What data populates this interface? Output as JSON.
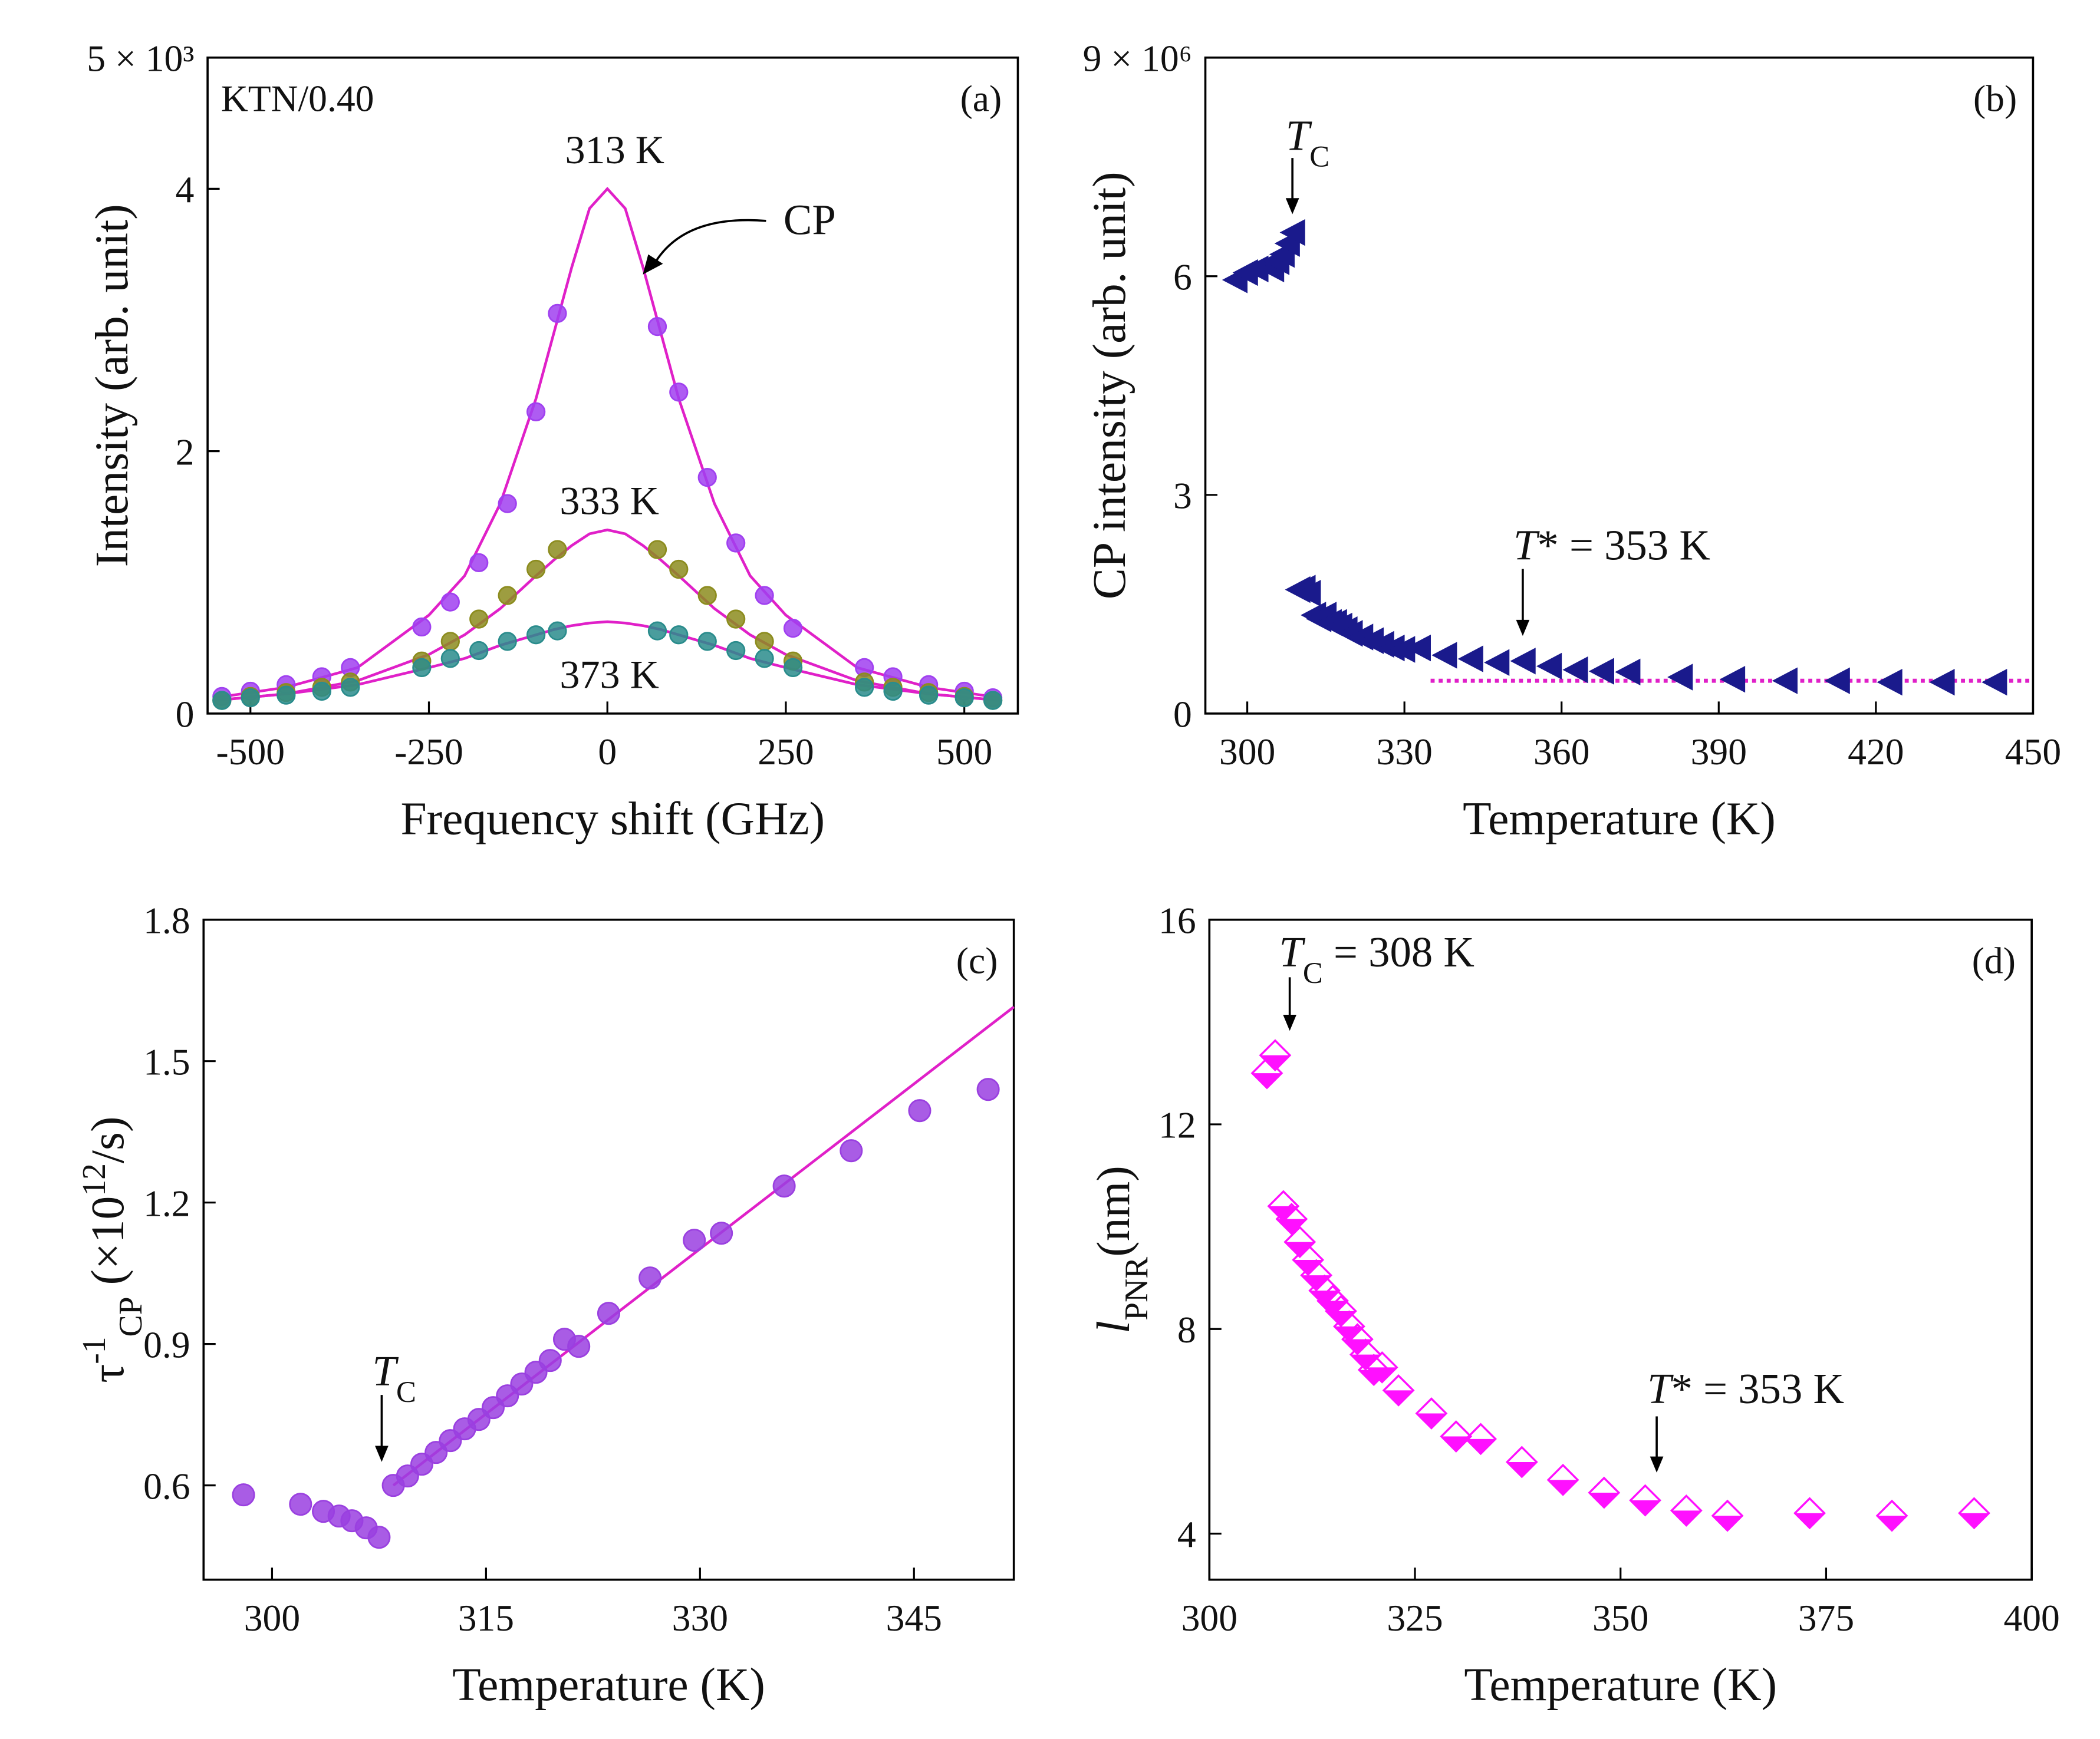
{
  "chart_data": [
    {
      "type": "scatter",
      "panel_label": "(a)",
      "sample": "KTN/0.40",
      "xlabel": "Frequency shift (GHz)",
      "ylabel": "Intensity (arb. unit)",
      "xlim": [
        -560,
        575
      ],
      "ylim": [
        0,
        5
      ],
      "xticks": [
        -500,
        -250,
        0,
        250,
        500
      ],
      "yticks": [
        0,
        2,
        4,
        {
          "value": 5,
          "label": "5 × 10³"
        }
      ],
      "series": [
        {
          "name": "313 K",
          "color": "#a040f0",
          "marker": "circle",
          "x": [
            -540,
            -500,
            -450,
            -400,
            -360,
            -260,
            -220,
            -180,
            -140,
            -100,
            -70,
            70,
            100,
            140,
            180,
            220,
            260,
            360,
            400,
            450,
            500,
            540
          ],
          "values": [
            0.13,
            0.17,
            0.22,
            0.28,
            0.35,
            0.66,
            0.85,
            1.15,
            1.6,
            2.3,
            3.05,
            2.95,
            2.45,
            1.8,
            1.3,
            0.9,
            0.65,
            0.35,
            0.28,
            0.22,
            0.17,
            0.12
          ]
        },
        {
          "name": "333 K",
          "color": "#8c8c1e",
          "marker": "circle",
          "x": [
            -540,
            -500,
            -450,
            -400,
            -360,
            -260,
            -220,
            -180,
            -140,
            -100,
            -70,
            70,
            100,
            140,
            180,
            220,
            260,
            360,
            400,
            450,
            500,
            540
          ],
          "values": [
            0.1,
            0.13,
            0.16,
            0.2,
            0.24,
            0.4,
            0.55,
            0.72,
            0.9,
            1.1,
            1.25,
            1.25,
            1.1,
            0.9,
            0.72,
            0.55,
            0.4,
            0.24,
            0.2,
            0.16,
            0.13,
            0.1
          ]
        },
        {
          "name": "373 K",
          "color": "#2a8c8c",
          "marker": "circle",
          "x": [
            -540,
            -500,
            -450,
            -400,
            -360,
            -260,
            -220,
            -180,
            -140,
            -100,
            -70,
            70,
            100,
            140,
            180,
            220,
            260,
            360,
            400,
            450,
            500,
            540
          ],
          "values": [
            0.1,
            0.12,
            0.14,
            0.17,
            0.2,
            0.35,
            0.42,
            0.48,
            0.55,
            0.6,
            0.63,
            0.63,
            0.6,
            0.55,
            0.48,
            0.42,
            0.35,
            0.2,
            0.17,
            0.14,
            0.12,
            0.1
          ]
        }
      ],
      "fits": [
        {
          "color": "#e020c8",
          "x": [
            -550,
            -450,
            -350,
            -250,
            -200,
            -150,
            -100,
            -75,
            -50,
            -25,
            0,
            25,
            50,
            75,
            100,
            150,
            200,
            250,
            350,
            450,
            550
          ],
          "values": [
            0.12,
            0.2,
            0.35,
            0.75,
            1.05,
            1.6,
            2.4,
            2.9,
            3.4,
            3.85,
            4.0,
            3.85,
            3.4,
            2.9,
            2.4,
            1.6,
            1.05,
            0.75,
            0.35,
            0.2,
            0.12
          ]
        },
        {
          "color": "#e020c8",
          "x": [
            -550,
            -450,
            -350,
            -250,
            -200,
            -150,
            -100,
            -75,
            -50,
            -25,
            0,
            25,
            50,
            75,
            100,
            150,
            200,
            250,
            350,
            450,
            550
          ],
          "values": [
            0.1,
            0.15,
            0.25,
            0.45,
            0.6,
            0.8,
            1.05,
            1.17,
            1.28,
            1.37,
            1.4,
            1.37,
            1.28,
            1.17,
            1.05,
            0.8,
            0.6,
            0.45,
            0.25,
            0.15,
            0.1
          ]
        },
        {
          "color": "#e020c8",
          "x": [
            -550,
            -450,
            -350,
            -250,
            -200,
            -150,
            -100,
            -75,
            -50,
            -25,
            0,
            25,
            50,
            75,
            100,
            150,
            200,
            250,
            350,
            450,
            550
          ],
          "values": [
            0.1,
            0.15,
            0.22,
            0.35,
            0.42,
            0.52,
            0.6,
            0.64,
            0.67,
            0.69,
            0.7,
            0.69,
            0.67,
            0.64,
            0.6,
            0.52,
            0.42,
            0.35,
            0.22,
            0.15,
            0.1
          ]
        }
      ],
      "annotations": [
        [
          {
            "text": "CP"
          }
        ]
      ]
    },
    {
      "type": "scatter",
      "panel_label": "(b)",
      "xlabel": "Temperature (K)",
      "ylabel": "CP intensity (arb. unit)",
      "xlim": [
        292,
        450
      ],
      "ylim": [
        0,
        9
      ],
      "xticks": [
        300,
        330,
        360,
        390,
        420,
        450
      ],
      "yticks": [
        0,
        3,
        6,
        {
          "value": 9,
          "label": "9 × 10⁶"
        }
      ],
      "series": [
        {
          "color": "#1a1a8c",
          "marker": "triangle-left",
          "x": [
            298,
            300,
            302,
            304,
            305,
            306,
            307,
            308,
            309,
            310,
            311,
            312,
            313,
            314,
            315,
            316,
            317,
            318,
            319,
            320,
            322,
            324,
            326,
            328,
            330,
            333,
            338,
            343,
            348,
            353,
            358,
            363,
            368,
            373,
            383,
            393,
            403,
            413,
            423,
            433,
            443
          ],
          "values": [
            5.95,
            6.05,
            6.1,
            6.15,
            6.1,
            6.2,
            6.3,
            6.45,
            6.6,
            1.7,
            1.72,
            1.65,
            1.35,
            1.3,
            1.35,
            1.25,
            1.25,
            1.2,
            1.15,
            1.1,
            1.05,
            1.0,
            0.95,
            0.9,
            0.88,
            0.9,
            0.8,
            0.75,
            0.7,
            0.72,
            0.65,
            0.6,
            0.58,
            0.57,
            0.5,
            0.47,
            0.45,
            0.45,
            0.43,
            0.43,
            0.43
          ]
        }
      ],
      "fits": [
        {
          "color": "#e020c8",
          "dashed": true,
          "x": [
            335,
            450
          ],
          "values": [
            0.45,
            0.45
          ]
        }
      ],
      "annotations": [
        [
          {
            "text": "T",
            "style": "italic"
          },
          {
            "text": "C",
            "style": "sub"
          }
        ],
        [
          {
            "text": "T",
            "style": "italic"
          },
          {
            "text": "* = 353 K"
          }
        ]
      ]
    },
    {
      "type": "scatter",
      "panel_label": "(c)",
      "xlabel": "Temperature (K)",
      "ylabel": [
        {
          "text": "τ"
        },
        {
          "text": "-1",
          "style": "sup"
        },
        {
          "text": "CP",
          "style": "sub"
        },
        {
          "text": " (×10"
        },
        {
          "text": "12",
          "style": "sup"
        },
        {
          "text": "/s)"
        }
      ],
      "xlim": [
        295.2,
        352
      ],
      "ylim": [
        0.4,
        1.8
      ],
      "xticks": [
        300,
        315,
        330,
        345
      ],
      "yticks": [
        0.6,
        0.9,
        1.2,
        1.5,
        1.8
      ],
      "series": [
        {
          "color": "#9a40e0",
          "marker": "circle",
          "x": [
            298,
            302,
            303.6,
            304.7,
            305.6,
            306.6,
            307.5,
            308.5,
            309.5,
            310.5,
            311.5,
            312.5,
            313.5,
            314.5,
            315.5,
            316.5,
            317.5,
            318.5,
            319.5,
            320.5,
            321.5,
            323.6,
            326.5,
            329.6,
            331.5,
            335.9,
            340.6,
            345.4,
            350.2
          ],
          "values": [
            0.58,
            0.56,
            0.545,
            0.535,
            0.525,
            0.51,
            0.49,
            0.6,
            0.62,
            0.645,
            0.67,
            0.695,
            0.72,
            0.74,
            0.765,
            0.79,
            0.815,
            0.84,
            0.865,
            0.91,
            0.895,
            0.965,
            1.04,
            1.12,
            1.135,
            1.235,
            1.31,
            1.395,
            1.44
          ]
        }
      ],
      "fits": [
        {
          "color": "#e020c8",
          "x": [
            308.5,
            352
          ],
          "values": [
            0.6,
            1.615
          ]
        }
      ],
      "annotations": [
        [
          {
            "text": "T",
            "style": "italic"
          },
          {
            "text": "C",
            "style": "sub"
          }
        ]
      ]
    },
    {
      "type": "scatter",
      "panel_label": "(d)",
      "xlabel": "Temperature (K)",
      "ylabel": [
        {
          "text": "l",
          "style": "italic"
        },
        {
          "text": "PNR",
          "style": "sub"
        },
        {
          "text": "(nm)"
        }
      ],
      "xlim": [
        300,
        400
      ],
      "ylim": [
        3.1,
        16
      ],
      "xticks": [
        300,
        325,
        350,
        375,
        400
      ],
      "yticks": [
        4,
        8,
        12,
        16
      ],
      "series": [
        {
          "color": "#ff10ff",
          "marker": "diamond-half",
          "x": [
            307,
            308,
            309,
            310,
            311,
            312,
            313,
            314,
            315,
            316,
            317,
            318,
            319,
            320,
            321,
            323,
            327,
            330,
            333,
            338,
            343,
            348,
            353,
            358,
            363,
            373,
            383,
            393
          ],
          "values": [
            13.0,
            13.35,
            10.4,
            10.15,
            9.7,
            9.35,
            9.05,
            8.75,
            8.55,
            8.35,
            8.05,
            7.8,
            7.5,
            7.2,
            7.25,
            6.8,
            6.35,
            5.9,
            5.85,
            5.4,
            5.05,
            4.8,
            4.65,
            4.45,
            4.35,
            4.4,
            4.35,
            4.4
          ]
        }
      ],
      "fits": [],
      "annotations": [
        [
          {
            "text": "T",
            "style": "italic"
          },
          {
            "text": "C",
            "style": "sub"
          },
          {
            "text": " = 308 K"
          }
        ],
        [
          {
            "text": "T",
            "style": "italic"
          },
          {
            "text": "* = 353 K"
          }
        ]
      ]
    }
  ]
}
